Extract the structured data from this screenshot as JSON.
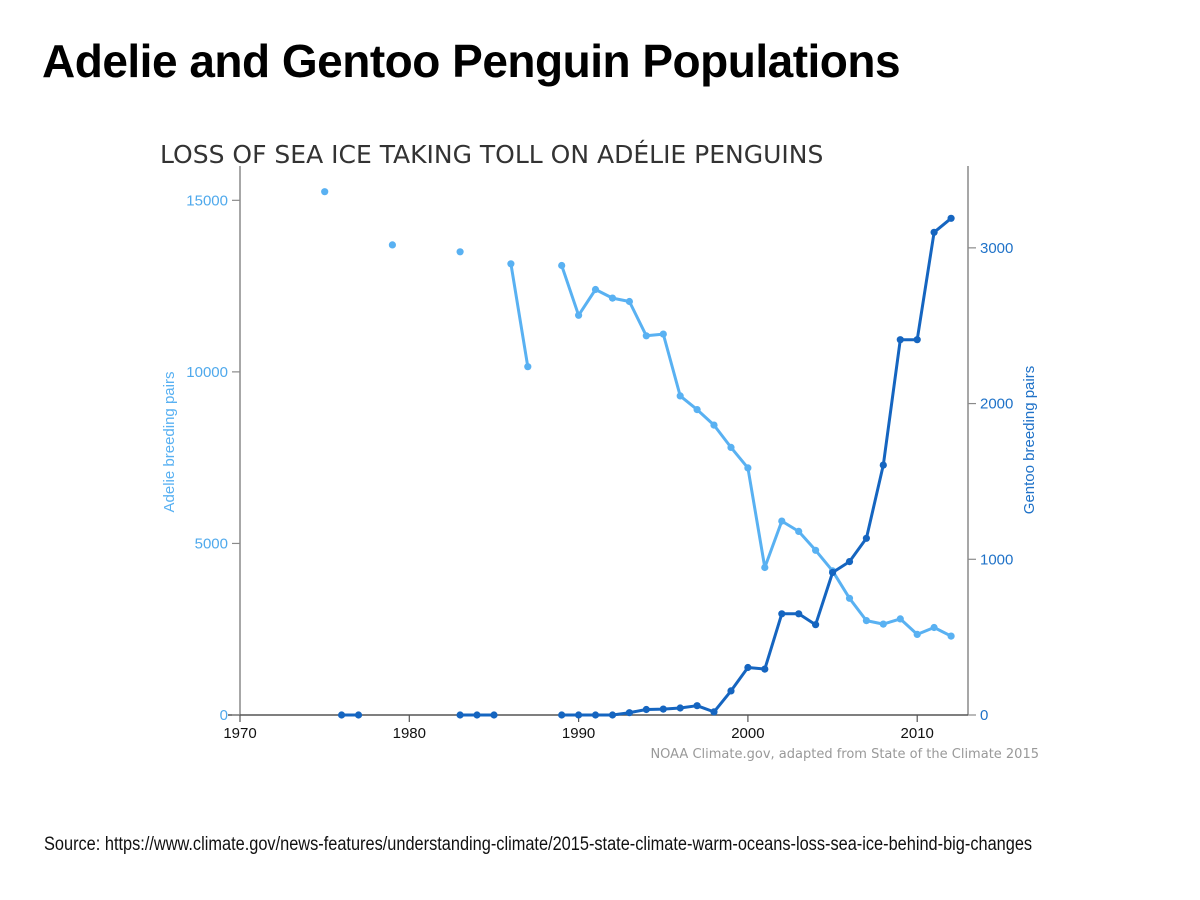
{
  "page": {
    "title": "Adelie and Gentoo Penguin Populations",
    "source": "Source: https://www.climate.gov/news-features/understanding-climate/2015-state-climate-warm-oceans-loss-sea-ice-behind-big-changes"
  },
  "chart_data": {
    "type": "line",
    "title": "LOSS OF SEA ICE TAKING TOLL ON ADÉLIE PENGUINS",
    "credit": "NOAA Climate.gov, adapted from State of the Climate 2015",
    "xlim": [
      1970,
      2013
    ],
    "x_ticks": [
      1970,
      1980,
      1990,
      2000,
      2010
    ],
    "grid": false,
    "y_left": {
      "label": "Adelie breeding pairs",
      "lim": [
        0,
        16000
      ],
      "ticks": [
        0,
        5000,
        10000,
        15000
      ],
      "color": "#59b1f2"
    },
    "y_right": {
      "label": "Gentoo breeding pairs",
      "lim": [
        0,
        3500
      ],
      "ticks": [
        0,
        1000,
        2000,
        3000
      ],
      "color": "#1565c0"
    },
    "series": [
      {
        "name": "Adelie breeding pairs",
        "axis": "left",
        "color": "#59b1f2",
        "segments": [
          [
            [
              1975,
              15250
            ]
          ],
          [
            [
              1979,
              13700
            ]
          ],
          [
            [
              1983,
              13500
            ]
          ],
          [
            [
              1986,
              13150
            ],
            [
              1987,
              10150
            ]
          ],
          [
            [
              1989,
              13100
            ],
            [
              1990,
              11650
            ],
            [
              1991,
              12400
            ],
            [
              1992,
              12150
            ],
            [
              1993,
              12050
            ],
            [
              1994,
              11050
            ],
            [
              1995,
              11100
            ],
            [
              1996,
              9300
            ],
            [
              1997,
              8900
            ],
            [
              1998,
              8450
            ],
            [
              1999,
              7800
            ],
            [
              2000,
              7200
            ],
            [
              2001,
              4300
            ],
            [
              2002,
              5650
            ],
            [
              2003,
              5350
            ],
            [
              2004,
              4800
            ],
            [
              2005,
              4200
            ],
            [
              2006,
              3400
            ],
            [
              2007,
              2750
            ],
            [
              2008,
              2650
            ],
            [
              2009,
              2800
            ],
            [
              2010,
              2350
            ],
            [
              2011,
              2550
            ],
            [
              2012,
              2300
            ]
          ]
        ]
      },
      {
        "name": "Gentoo breeding pairs",
        "axis": "right",
        "color": "#1565c0",
        "segments": [
          [
            [
              1976,
              0
            ],
            [
              1977,
              0
            ]
          ],
          [
            [
              1983,
              0
            ],
            [
              1984,
              0
            ],
            [
              1985,
              0
            ]
          ],
          [
            [
              1989,
              0
            ],
            [
              1990,
              0
            ],
            [
              1991,
              0
            ],
            [
              1992,
              0
            ],
            [
              1993,
              15
            ],
            [
              1994,
              35
            ],
            [
              1995,
              38
            ],
            [
              1996,
              45
            ],
            [
              1997,
              60
            ],
            [
              1998,
              20
            ],
            [
              1999,
              155
            ],
            [
              2000,
              305
            ],
            [
              2001,
              295
            ],
            [
              2002,
              650
            ],
            [
              2003,
              650
            ],
            [
              2004,
              580
            ],
            [
              2005,
              915
            ],
            [
              2006,
              985
            ],
            [
              2007,
              1135
            ],
            [
              2008,
              1605
            ],
            [
              2009,
              2410
            ],
            [
              2010,
              2410
            ],
            [
              2011,
              3100
            ],
            [
              2012,
              3190
            ]
          ]
        ]
      }
    ]
  }
}
